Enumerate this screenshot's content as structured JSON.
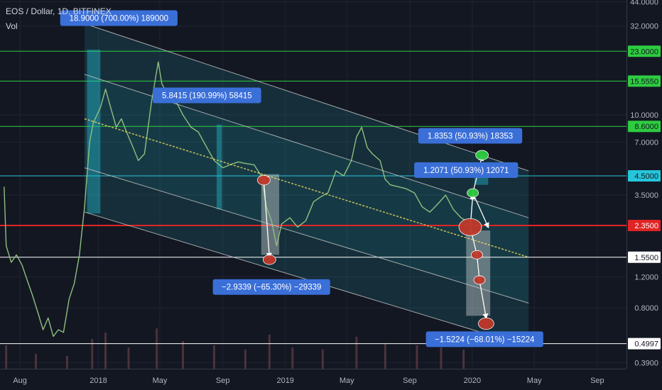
{
  "header": {
    "title": "EOS / Dollar, 1D, BITFINEX",
    "vol": "Vol"
  },
  "chart_data": {
    "type": "line",
    "title": "EOS / Dollar, 1D, BITFINEX",
    "y_scale": "log",
    "ylim": [
      0.36,
      45
    ],
    "xlim": [
      "2017-06-23",
      "2020-10-28"
    ],
    "x_ticks": [
      {
        "date": "2017-08-01",
        "label": "Aug"
      },
      {
        "date": "2018-01-01",
        "label": "2018"
      },
      {
        "date": "2018-05-01",
        "label": "May"
      },
      {
        "date": "2018-09-01",
        "label": "Sep"
      },
      {
        "date": "2019-01-01",
        "label": "2019"
      },
      {
        "date": "2019-05-01",
        "label": "May"
      },
      {
        "date": "2019-09-01",
        "label": "Sep"
      },
      {
        "date": "2020-01-01",
        "label": "2020"
      },
      {
        "date": "2020-05-01",
        "label": "May"
      },
      {
        "date": "2020-09-01",
        "label": "Sep"
      }
    ],
    "y_ticks": [
      {
        "v": 44.0,
        "label": "44.0000"
      },
      {
        "v": 32.0,
        "label": "32.0000"
      },
      {
        "v": 10.0,
        "label": "10.0000"
      },
      {
        "v": 7.0,
        "label": "7.0000"
      },
      {
        "v": 3.5,
        "label": "3.5000"
      },
      {
        "v": 1.2,
        "label": "1.2000"
      },
      {
        "v": 0.8,
        "label": "0.8000"
      },
      {
        "v": 0.39,
        "label": "0.3900"
      }
    ],
    "levels": [
      {
        "v": 23.0,
        "label": "23.0000",
        "color": "#2ecc40"
      },
      {
        "v": 15.555,
        "label": "15.5550",
        "color": "#2ecc40"
      },
      {
        "v": 8.6,
        "label": "8.6000",
        "color": "#2ecc40"
      },
      {
        "v": 4.5,
        "label": "4.5000",
        "color": "#26c6da"
      },
      {
        "v": 2.35,
        "label": "2.3500",
        "color": "#e02424"
      },
      {
        "v": 1.55,
        "label": "1.5500",
        "color": "#ffffff"
      },
      {
        "v": 0.4997,
        "label": "0.4997",
        "color": "#ffffff"
      }
    ],
    "price": [
      [
        "2017-07-01",
        3.9
      ],
      [
        "2017-07-05",
        1.8
      ],
      [
        "2017-07-15",
        1.45
      ],
      [
        "2017-07-25",
        1.6
      ],
      [
        "2017-08-05",
        1.4
      ],
      [
        "2017-08-15",
        1.15
      ],
      [
        "2017-08-25",
        0.95
      ],
      [
        "2017-09-05",
        0.75
      ],
      [
        "2017-09-15",
        0.6
      ],
      [
        "2017-09-25",
        0.7
      ],
      [
        "2017-10-05",
        0.55
      ],
      [
        "2017-10-15",
        0.6
      ],
      [
        "2017-10-25",
        0.58
      ],
      [
        "2017-11-05",
        0.9
      ],
      [
        "2017-11-15",
        1.1
      ],
      [
        "2017-11-25",
        1.6
      ],
      [
        "2017-12-05",
        3.0
      ],
      [
        "2017-12-15",
        7.0
      ],
      [
        "2017-12-22",
        9.0
      ],
      [
        "2018-01-05",
        11.0
      ],
      [
        "2018-01-15",
        14.0
      ],
      [
        "2018-01-25",
        11.0
      ],
      [
        "2018-02-05",
        8.5
      ],
      [
        "2018-02-15",
        9.5
      ],
      [
        "2018-02-25",
        8.0
      ],
      [
        "2018-03-10",
        6.5
      ],
      [
        "2018-03-20",
        5.5
      ],
      [
        "2018-04-01",
        6.0
      ],
      [
        "2018-04-15",
        12.0
      ],
      [
        "2018-04-28",
        20.0
      ],
      [
        "2018-05-05",
        15.0
      ],
      [
        "2018-05-20",
        12.5
      ],
      [
        "2018-06-01",
        12.0
      ],
      [
        "2018-06-15",
        10.0
      ],
      [
        "2018-07-01",
        8.5
      ],
      [
        "2018-07-15",
        8.0
      ],
      [
        "2018-08-01",
        6.5
      ],
      [
        "2018-08-15",
        5.5
      ],
      [
        "2018-09-01",
        5.0
      ],
      [
        "2018-09-15",
        5.2
      ],
      [
        "2018-10-01",
        5.4
      ],
      [
        "2018-10-15",
        5.3
      ],
      [
        "2018-11-01",
        5.2
      ],
      [
        "2018-11-15",
        4.5
      ],
      [
        "2018-11-25",
        3.0
      ],
      [
        "2018-12-05",
        2.5
      ],
      [
        "2018-12-15",
        1.8
      ],
      [
        "2018-12-25",
        2.4
      ],
      [
        "2019-01-10",
        2.6
      ],
      [
        "2019-01-25",
        2.3
      ],
      [
        "2019-02-10",
        2.5
      ],
      [
        "2019-02-25",
        3.2
      ],
      [
        "2019-03-10",
        3.4
      ],
      [
        "2019-03-25",
        3.6
      ],
      [
        "2019-04-10",
        4.8
      ],
      [
        "2019-04-25",
        4.5
      ],
      [
        "2019-05-10",
        5.5
      ],
      [
        "2019-05-20",
        7.5
      ],
      [
        "2019-05-30",
        8.5
      ],
      [
        "2019-06-10",
        6.5
      ],
      [
        "2019-06-20",
        6.0
      ],
      [
        "2019-07-05",
        5.5
      ],
      [
        "2019-07-15",
        4.3
      ],
      [
        "2019-07-25",
        4.0
      ],
      [
        "2019-08-10",
        3.9
      ],
      [
        "2019-08-25",
        3.8
      ],
      [
        "2019-09-10",
        3.6
      ],
      [
        "2019-09-25",
        3.0
      ],
      [
        "2019-10-10",
        2.8
      ],
      [
        "2019-10-25",
        3.1
      ],
      [
        "2019-11-10",
        3.5
      ],
      [
        "2019-11-25",
        2.9
      ],
      [
        "2019-12-10",
        2.6
      ],
      [
        "2019-12-20",
        2.5
      ]
    ],
    "volume": [
      [
        "2017-07-05",
        0.55
      ],
      [
        "2017-09-01",
        0.35
      ],
      [
        "2017-11-01",
        0.3
      ],
      [
        "2017-12-20",
        0.7
      ],
      [
        "2018-01-15",
        0.85
      ],
      [
        "2018-03-01",
        0.5
      ],
      [
        "2018-04-25",
        0.95
      ],
      [
        "2018-06-15",
        0.65
      ],
      [
        "2018-08-15",
        0.55
      ],
      [
        "2018-10-15",
        0.45
      ],
      [
        "2018-12-01",
        0.8
      ],
      [
        "2019-01-15",
        0.5
      ],
      [
        "2019-03-15",
        0.45
      ],
      [
        "2019-05-20",
        0.75
      ],
      [
        "2019-07-15",
        0.6
      ],
      [
        "2019-09-15",
        0.55
      ],
      [
        "2019-11-01",
        0.5
      ],
      [
        "2019-12-15",
        0.45
      ]
    ],
    "channel": {
      "t1": "2017-12-05",
      "t2": "2020-04-20",
      "mid": [
        9.5,
        1.55
      ],
      "lines": [
        {
          "name": "top",
          "v1": 33.0,
          "v2": 4.8,
          "color": "#c8c8c8"
        },
        {
          "name": "upper-inner",
          "v1": 17.0,
          "v2": 2.6,
          "color": "#c8c8c8"
        },
        {
          "name": "median",
          "v1": 9.5,
          "v2": 1.55,
          "color": "#f6e05e",
          "dash": true
        },
        {
          "name": "lower-inner",
          "v1": 5.0,
          "v2": 0.85,
          "color": "#c8c8c8"
        },
        {
          "name": "bottom",
          "v1": 2.8,
          "v2": 0.48,
          "color": "#c8c8c8"
        }
      ]
    },
    "boxes": [
      {
        "t1": "2017-12-10",
        "t2": "2018-01-05",
        "v1": 23.5,
        "v2": 2.75,
        "color": "#26c6da"
      },
      {
        "t1": "2018-08-20",
        "t2": "2018-08-30",
        "v1": 8.8,
        "v2": 2.9,
        "color": "#26c6da"
      },
      {
        "t1": "2018-11-15",
        "t2": "2018-12-20",
        "v1": 4.6,
        "v2": 1.6,
        "color": "#d9d9d9"
      },
      {
        "t1": "2019-12-20",
        "t2": "2020-02-05",
        "v1": 2.2,
        "v2": 0.72,
        "color": "#d9d9d9"
      },
      {
        "t1": "2020-01-05",
        "t2": "2020-02-01",
        "v1": 5.0,
        "v2": 4.0,
        "color": "#26c6da"
      }
    ],
    "markers": [
      {
        "t": "2018-11-20",
        "v": 4.25,
        "color": "#c0392b",
        "r": 9
      },
      {
        "t": "2018-12-01",
        "v": 1.5,
        "color": "#c0392b",
        "r": 9
      },
      {
        "t": "2019-12-28",
        "v": 2.3,
        "color": "#c0392b",
        "r": 16
      },
      {
        "t": "2020-01-10",
        "v": 1.6,
        "color": "#c0392b",
        "r": 8
      },
      {
        "t": "2020-01-15",
        "v": 1.15,
        "color": "#c0392b",
        "r": 8
      },
      {
        "t": "2020-01-28",
        "v": 0.65,
        "color": "#c0392b",
        "r": 11
      },
      {
        "t": "2020-01-02",
        "v": 3.6,
        "color": "#2ecc40",
        "r": 8
      },
      {
        "t": "2020-01-20",
        "v": 5.9,
        "color": "#2ecc40",
        "r": 9
      }
    ],
    "arrows": [
      {
        "from": [
          "2018-11-20",
          4.25
        ],
        "to": [
          "2018-12-01",
          1.55
        ]
      },
      {
        "from": [
          "2019-12-28",
          2.3
        ],
        "to": [
          "2020-01-10",
          1.6
        ]
      },
      {
        "from": [
          "2020-01-10",
          1.6
        ],
        "to": [
          "2020-01-15",
          1.15
        ]
      },
      {
        "from": [
          "2020-01-15",
          1.15
        ],
        "to": [
          "2020-01-28",
          0.7
        ]
      },
      {
        "from": [
          "2019-12-28",
          2.3
        ],
        "to": [
          "2020-01-02",
          3.5
        ]
      },
      {
        "from": [
          "2020-01-02",
          3.6
        ],
        "to": [
          "2020-01-20",
          5.8
        ]
      },
      {
        "from": [
          "2020-01-02",
          3.6
        ],
        "to": [
          "2020-02-01",
          2.3
        ]
      }
    ],
    "annotations": [
      {
        "text": "18.9000 (700.00%) 189000",
        "anchor": [
          "2018-02-10",
          35.5
        ]
      },
      {
        "text": "5.8415 (190.99%) 58415",
        "anchor": [
          "2018-08-01",
          12.9
        ]
      },
      {
        "text": "1.8353 (50.93%) 18353",
        "anchor": [
          "2019-12-28",
          7.6
        ]
      },
      {
        "text": "1.2071 (50.93%) 12071",
        "anchor": [
          "2019-12-20",
          4.85
        ]
      },
      {
        "text": "−2.9339 (−65.30%) −29339",
        "anchor": [
          "2018-12-05",
          1.05
        ]
      },
      {
        "text": "−1.5224 (−68.01%) −15224",
        "anchor": [
          "2020-01-25",
          0.53
        ]
      }
    ]
  }
}
